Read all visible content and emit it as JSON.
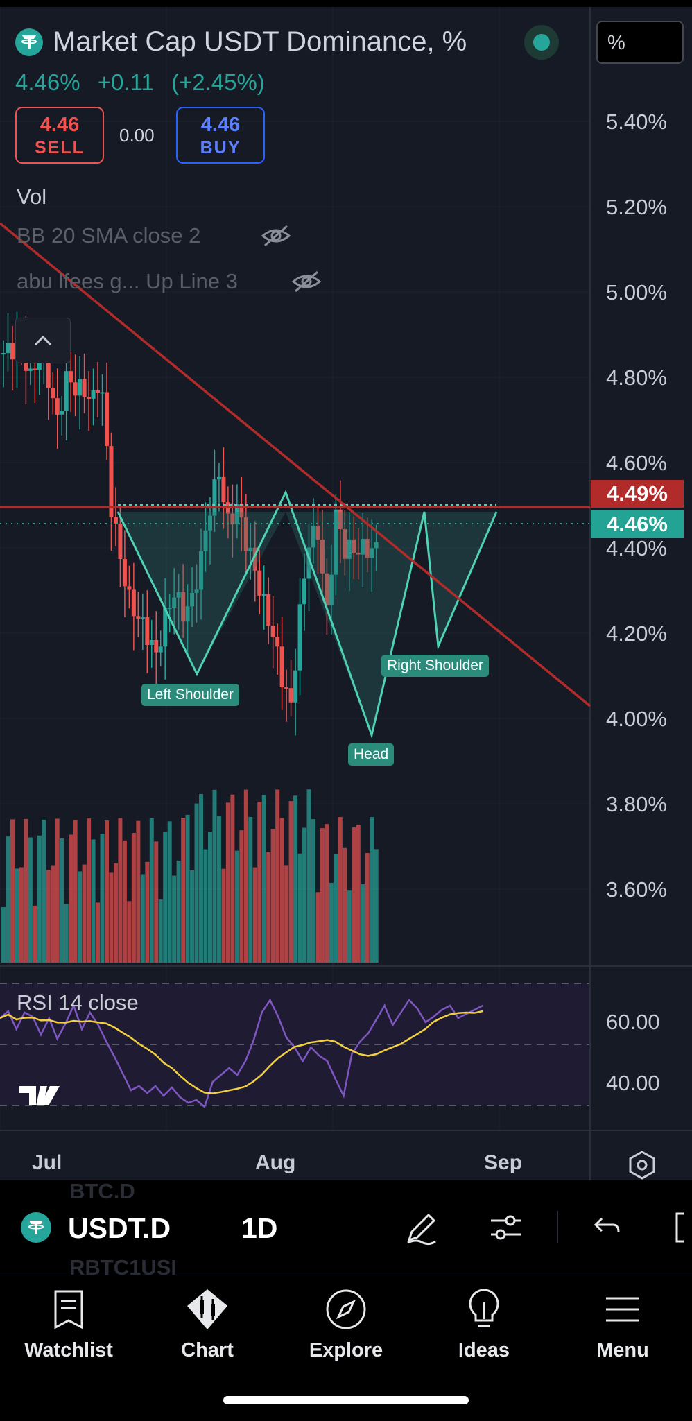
{
  "legend": {
    "title": "Market Cap USDT Dominance, %",
    "last_price": "4.46%",
    "change": "+0.11",
    "change_pct": "(+2.45%)",
    "sell_value": "4.46",
    "sell_label": "SELL",
    "spread": "0.00",
    "buy_value": "4.46",
    "buy_label": "BUY",
    "vol_label": "Vol",
    "bb_label": "BB 20 SMA close 2",
    "custom_indicator_label": "abu lfees g... Up Line 3"
  },
  "scale_box": "%",
  "price_axis": [
    "5.40%",
    "5.20%",
    "5.00%",
    "4.80%",
    "4.60%",
    "4.40%",
    "4.20%",
    "4.00%",
    "3.80%",
    "3.60%"
  ],
  "price_tags": {
    "resistance": "4.49%",
    "current": "4.46%"
  },
  "pattern_labels": {
    "left": "Left Shoulder",
    "head": "Head",
    "right": "Right Shoulder"
  },
  "rsi": {
    "label": "RSI 14 close",
    "axis": [
      "60.00",
      "40.00"
    ]
  },
  "time_axis": [
    "Jul",
    "Aug",
    "Sep"
  ],
  "toolbar": {
    "symbol": "USDT.D",
    "interval": "1D",
    "ghost_1": "BTC.D",
    "ghost_2": "RBTC1USI"
  },
  "nav": [
    {
      "label": "Watchlist",
      "icon": "watchlist-icon"
    },
    {
      "label": "Chart",
      "icon": "chart-icon"
    },
    {
      "label": "Explore",
      "icon": "compass-icon"
    },
    {
      "label": "Ideas",
      "icon": "lightbulb-icon"
    },
    {
      "label": "Menu",
      "icon": "menu-icon"
    }
  ],
  "colors": {
    "up": "#26a69a",
    "down": "#ef5350",
    "background": "#161a25",
    "trendline": "#b22b2b",
    "rsi_line": "#7e57c2",
    "rsi_ma": "#f4d03f"
  }
}
